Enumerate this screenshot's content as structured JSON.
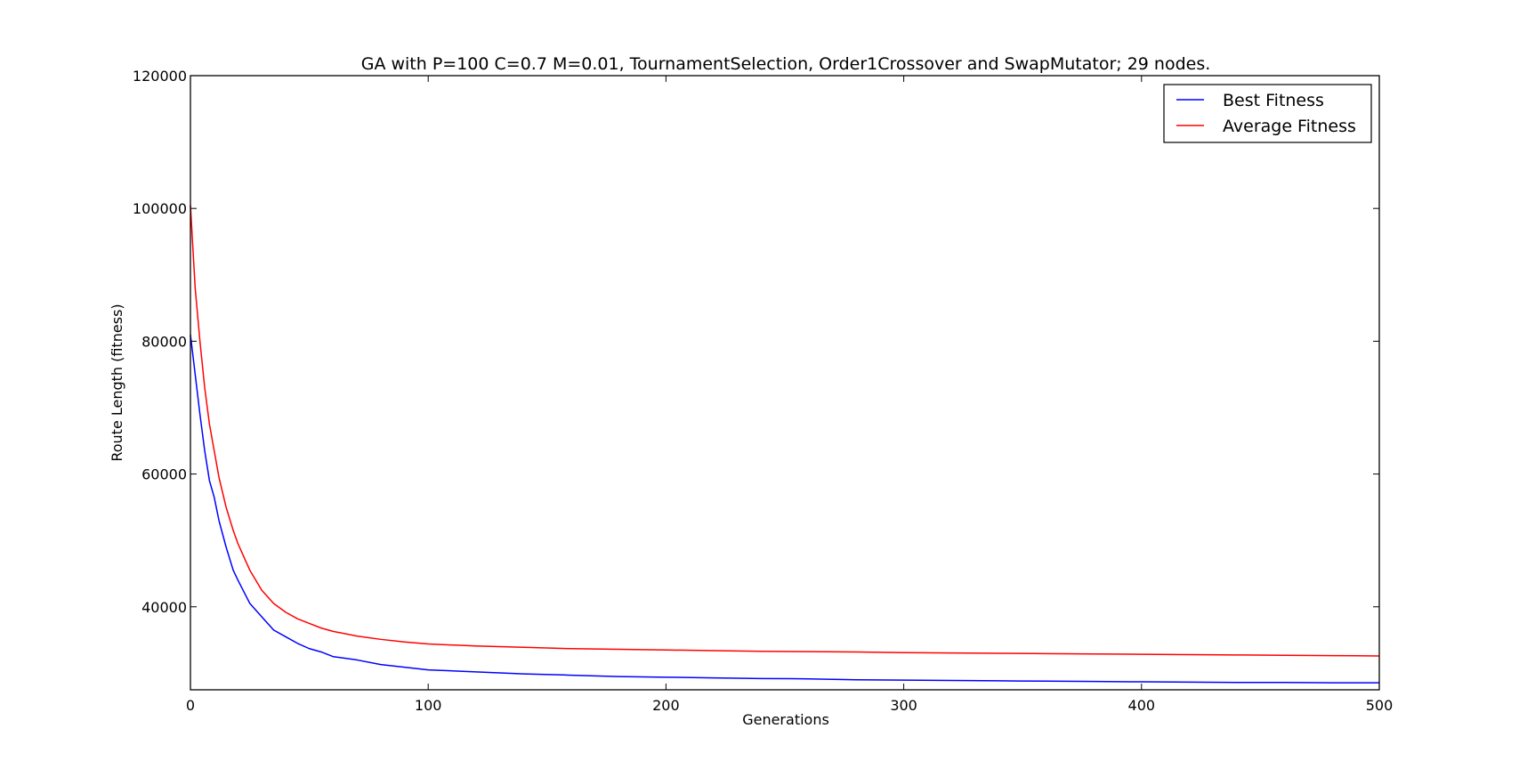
{
  "chart_data": {
    "type": "line",
    "title": "GA with P=100 C=0.7 M=0.01, TournamentSelection, Order1Crossover and SwapMutator; 29 nodes.",
    "xlabel": "Generations",
    "ylabel": "Route Length (fitness)",
    "xlim": [
      0,
      500
    ],
    "ylim": [
      27500,
      120000
    ],
    "xticks": [
      0,
      100,
      200,
      300,
      400,
      500
    ],
    "yticks": [
      40000,
      60000,
      80000,
      100000,
      120000
    ],
    "grid": false,
    "legend_position": "top-right",
    "series": [
      {
        "name": "Best Fitness",
        "color": "#0000ff",
        "x": [
          0,
          2,
          4,
          6,
          8,
          10,
          12,
          15,
          18,
          20,
          25,
          30,
          35,
          40,
          45,
          50,
          55,
          60,
          70,
          80,
          90,
          100,
          120,
          140,
          160,
          180,
          200,
          220,
          240,
          260,
          280,
          300,
          320,
          340,
          360,
          380,
          400,
          420,
          440,
          460,
          480,
          500
        ],
        "values": [
          81000,
          75000,
          69000,
          63500,
          59000,
          56500,
          53000,
          49000,
          45500,
          44000,
          40500,
          38500,
          36500,
          35500,
          34500,
          33700,
          33200,
          32500,
          32000,
          31300,
          30900,
          30500,
          30200,
          29900,
          29700,
          29500,
          29400,
          29300,
          29200,
          29150,
          29000,
          28950,
          28900,
          28850,
          28800,
          28750,
          28700,
          28650,
          28600,
          28600,
          28550,
          28550
        ]
      },
      {
        "name": "Average Fitness",
        "color": "#ff0000",
        "x": [
          0,
          2,
          4,
          6,
          8,
          10,
          12,
          15,
          18,
          20,
          25,
          30,
          35,
          40,
          45,
          50,
          55,
          60,
          70,
          80,
          90,
          100,
          120,
          140,
          160,
          180,
          200,
          220,
          240,
          260,
          280,
          300,
          320,
          340,
          360,
          380,
          400,
          420,
          440,
          460,
          480,
          500
        ],
        "values": [
          100500,
          88000,
          80000,
          73000,
          67500,
          63500,
          59500,
          55000,
          51500,
          49500,
          45500,
          42500,
          40500,
          39200,
          38200,
          37500,
          36800,
          36300,
          35600,
          35100,
          34700,
          34400,
          34100,
          33900,
          33700,
          33600,
          33500,
          33400,
          33300,
          33250,
          33200,
          33100,
          33050,
          33000,
          32950,
          32900,
          32850,
          32800,
          32750,
          32700,
          32650,
          32600
        ]
      }
    ]
  }
}
